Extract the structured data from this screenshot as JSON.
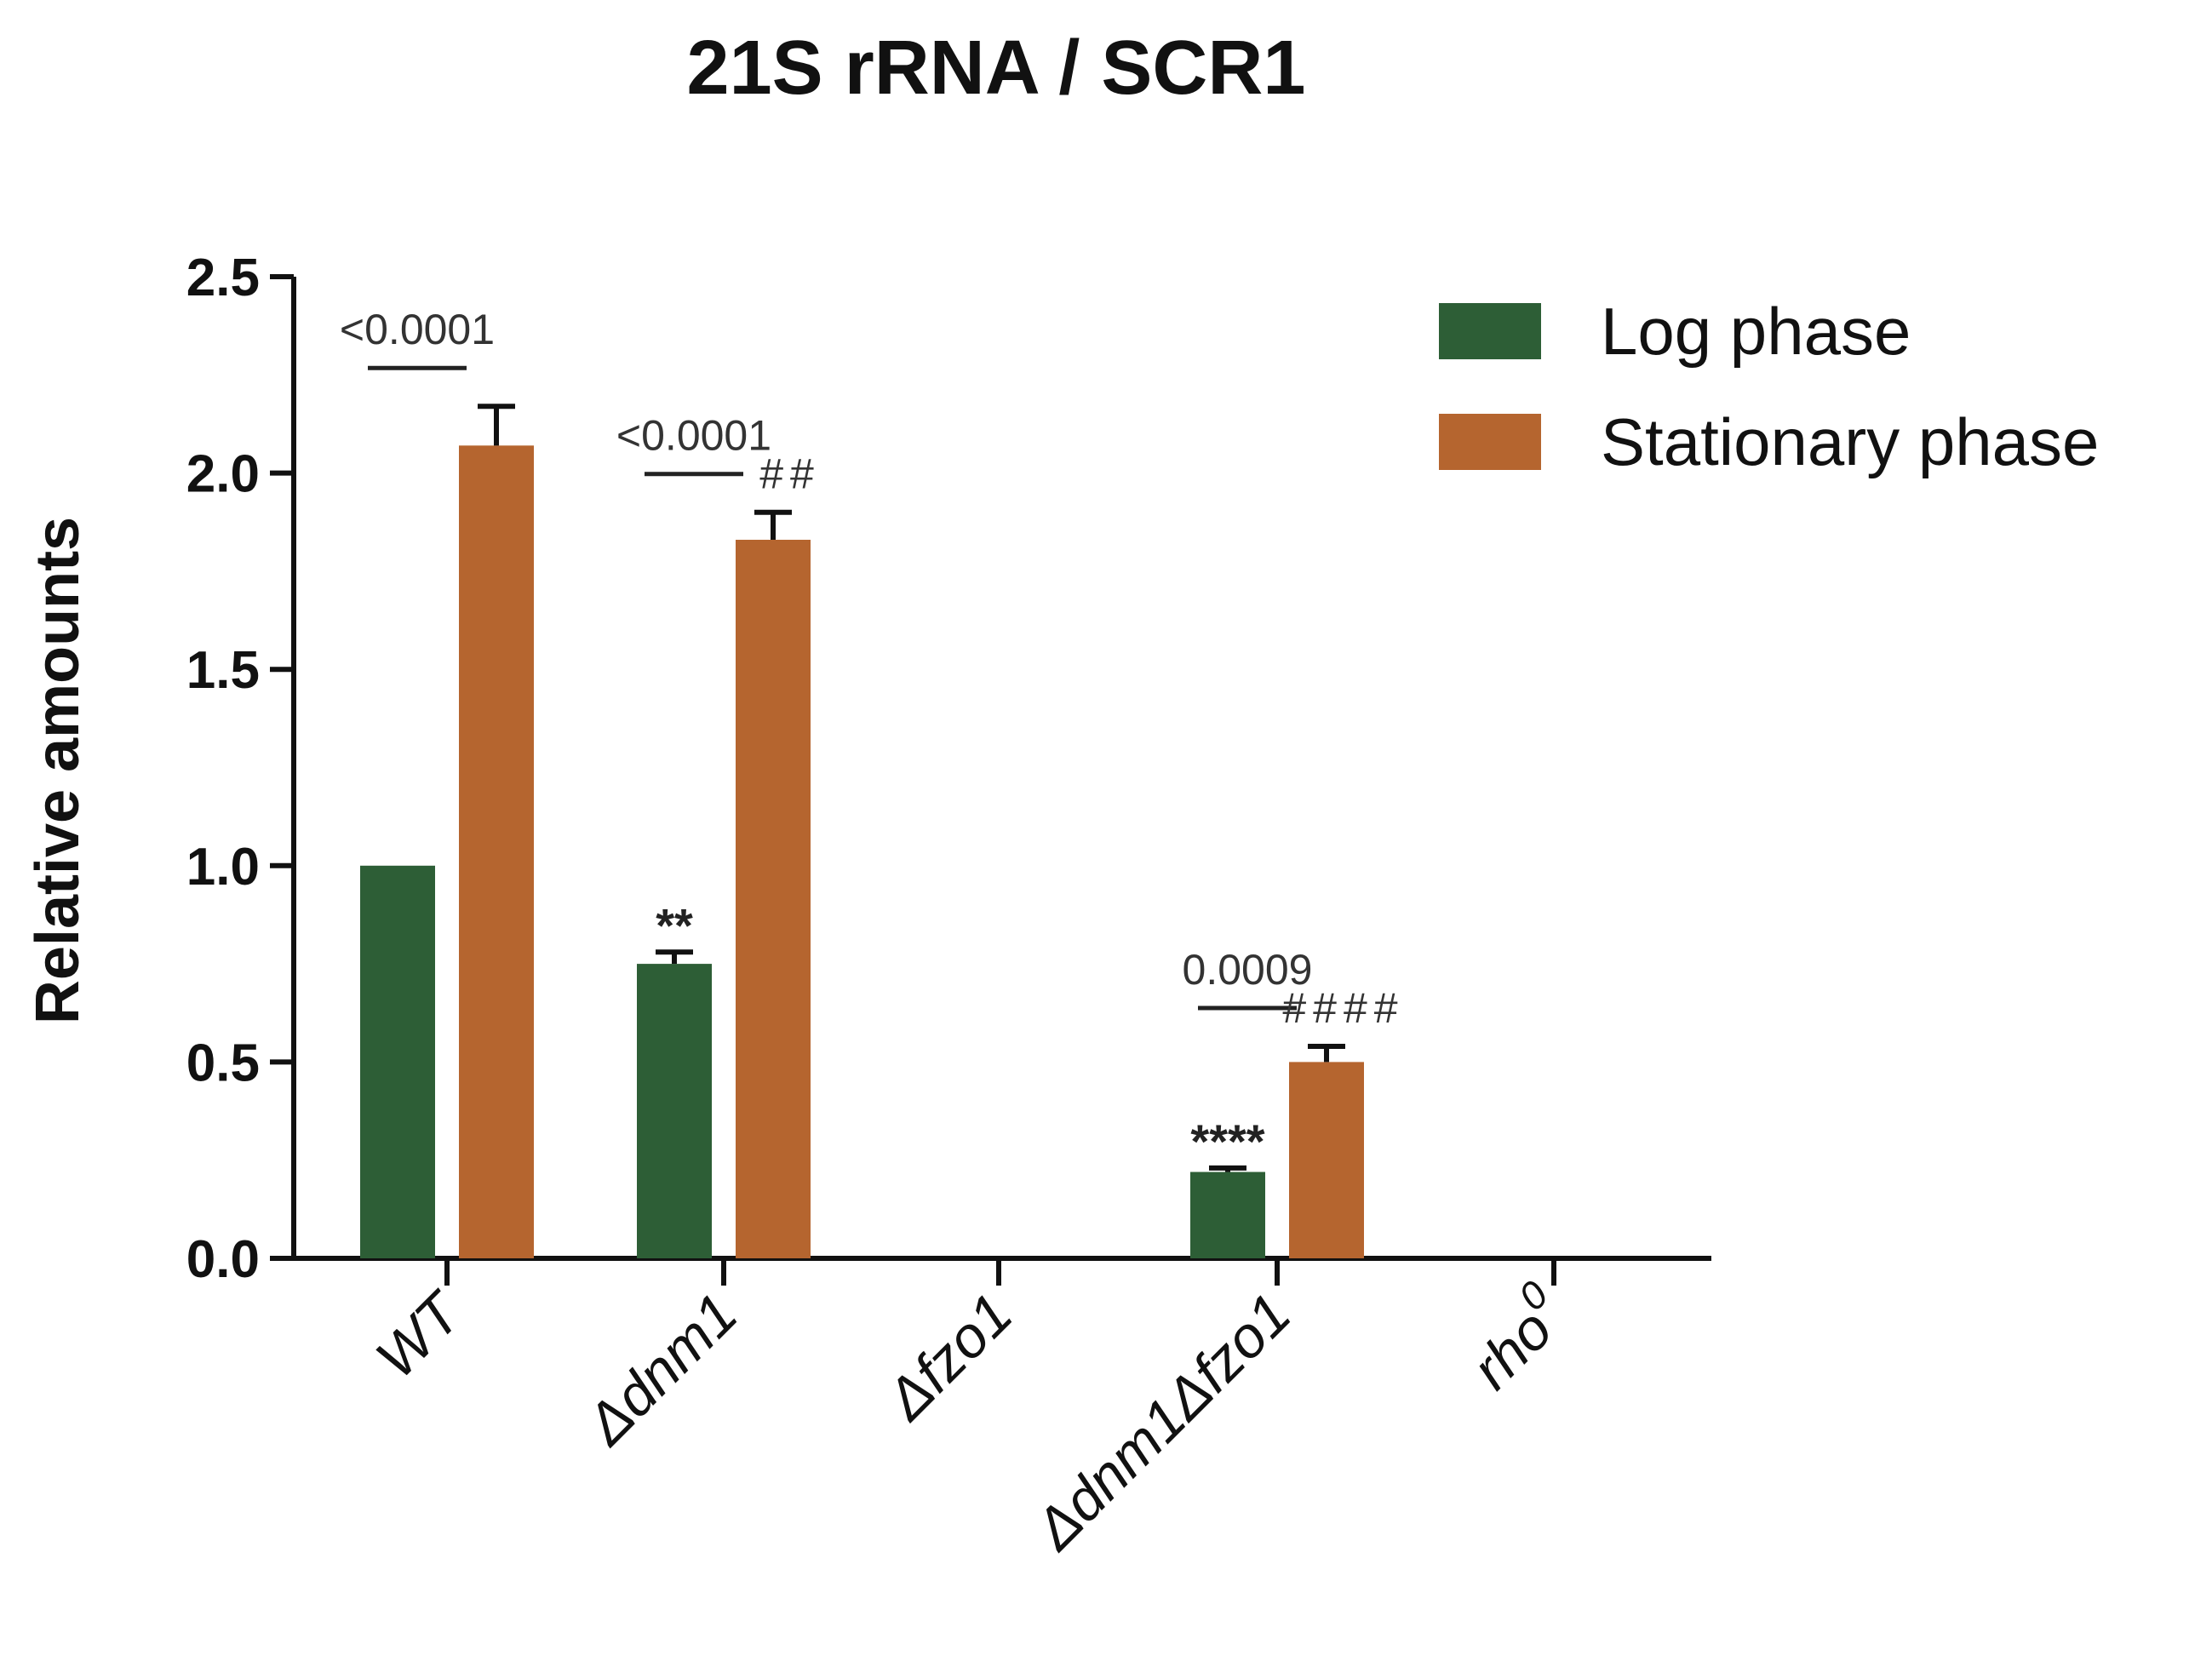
{
  "chart_data": {
    "type": "bar",
    "title": "21S rRNA / SCR1",
    "ylabel": "Relative amounts",
    "xlabel": "",
    "ylim": [
      0,
      2.5
    ],
    "yticks": [
      "0.0",
      "0.5",
      "1.0",
      "1.5",
      "2.0",
      "2.5"
    ],
    "categories": [
      {
        "main": "WT",
        "sup": ""
      },
      {
        "main": "Δdnm1",
        "sup": ""
      },
      {
        "main": "Δfzo1",
        "sup": ""
      },
      {
        "main": "Δdnm1Δfzo1",
        "sup": ""
      },
      {
        "main": "rho",
        "sup": "0"
      }
    ],
    "legend_position": "top-right",
    "series": [
      {
        "name": "Log phase",
        "color": "#2d5e36",
        "values": [
          1.0,
          0.75,
          0,
          0.22,
          0
        ],
        "errors": [
          0,
          0.03,
          0,
          0.01,
          0
        ]
      },
      {
        "name": "Stationary phase",
        "color": "#b5652f",
        "values": [
          2.07,
          1.83,
          0,
          0.5,
          0
        ],
        "errors": [
          0.1,
          0.07,
          0,
          0.04,
          0
        ]
      }
    ],
    "annotations": {
      "pvalues": [
        {
          "category": 0,
          "text": "<0.0001"
        },
        {
          "category": 1,
          "text": "<0.0001"
        },
        {
          "category": 3,
          "text": "0.0009"
        }
      ],
      "stars": [
        {
          "category": 1,
          "series": 0,
          "text": "**"
        },
        {
          "category": 3,
          "series": 0,
          "text": "****"
        }
      ],
      "hashes": [
        {
          "category": 1,
          "series": 1,
          "text": "##"
        },
        {
          "category": 3,
          "series": 1,
          "text": "####"
        }
      ]
    }
  }
}
